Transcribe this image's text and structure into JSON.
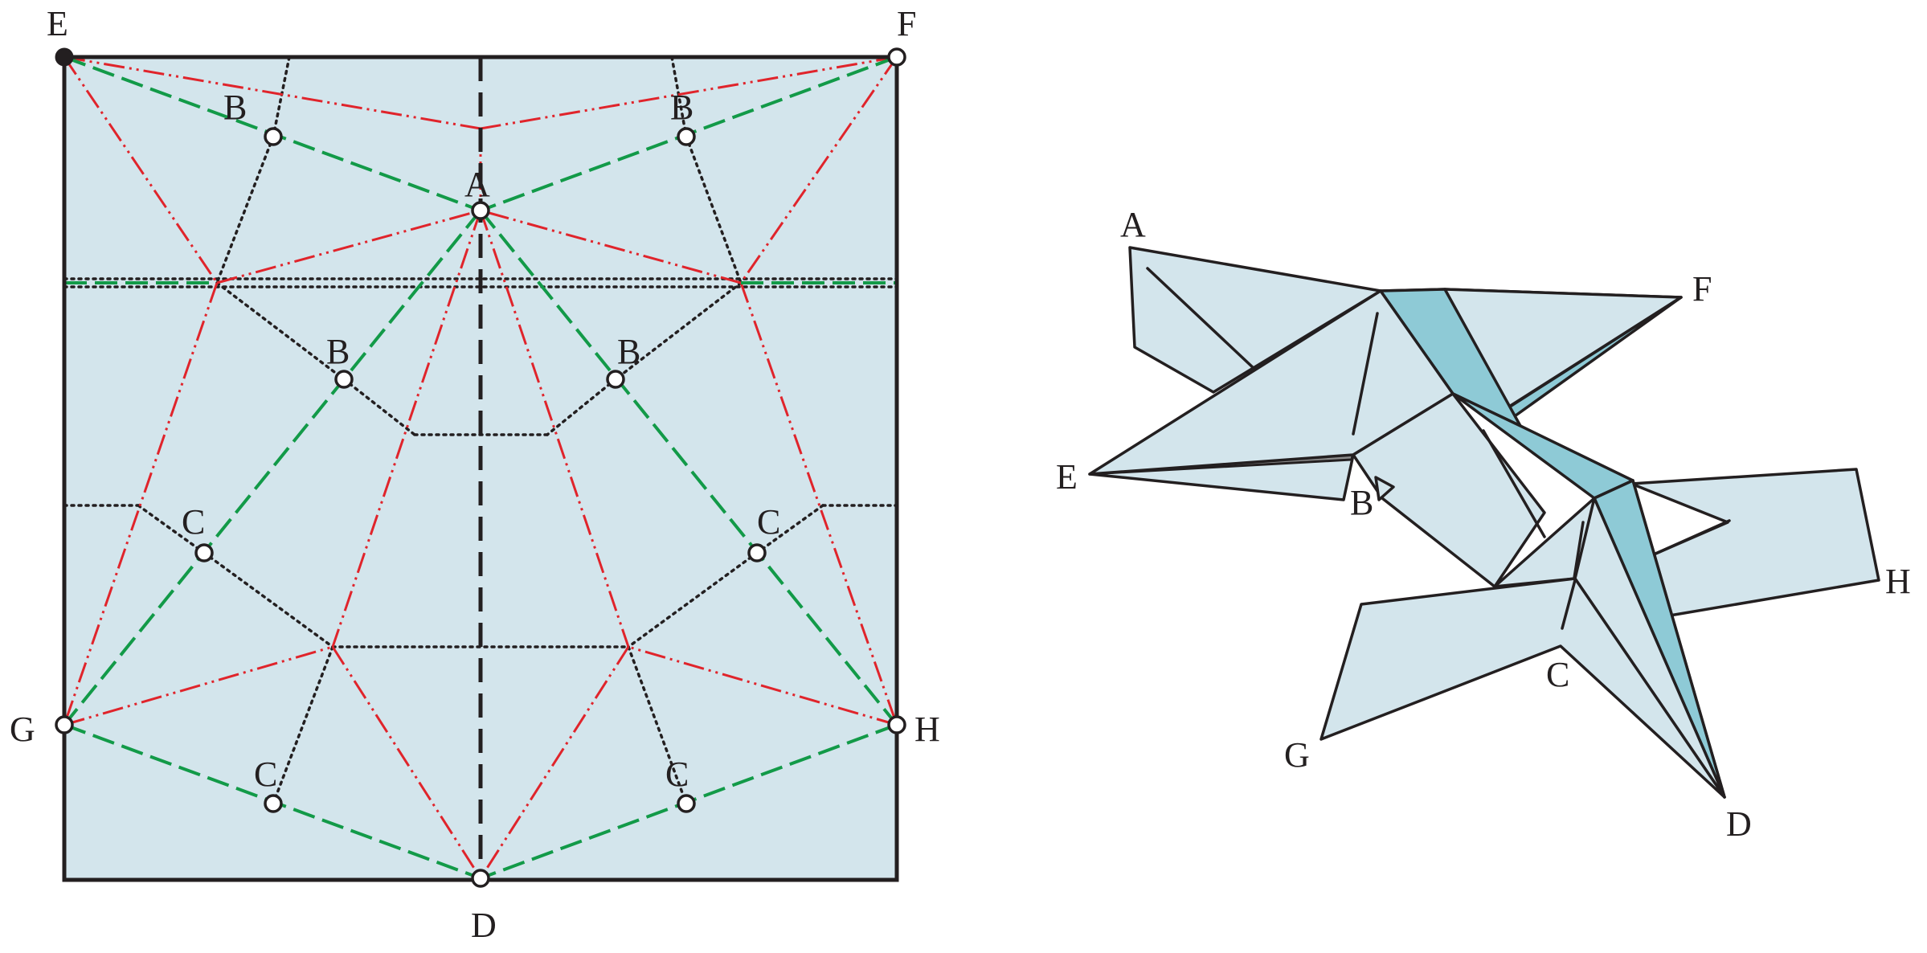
{
  "colors": {
    "paper": "#d3e5ec",
    "model_light": "#d3e5ec",
    "model_dark": "#8ecad6",
    "mountain_fold": "#e0242b",
    "valley_fold": "#129a48",
    "outline": "#231f20"
  },
  "crease_pattern": {
    "labels": {
      "E": "E",
      "F": "F",
      "G": "G",
      "H": "H",
      "D": "D",
      "A": "A",
      "B_top_left": "B",
      "B_top_right": "B",
      "B_mid_left": "B",
      "B_mid_right": "B",
      "C_mid_left": "C",
      "C_mid_right": "C",
      "C_bot_left": "C",
      "C_bot_right": "C"
    }
  },
  "folded_model": {
    "labels": {
      "A": "A",
      "F": "F",
      "E": "E",
      "B": "B",
      "H": "H",
      "C": "C",
      "G": "G",
      "D": "D"
    }
  }
}
